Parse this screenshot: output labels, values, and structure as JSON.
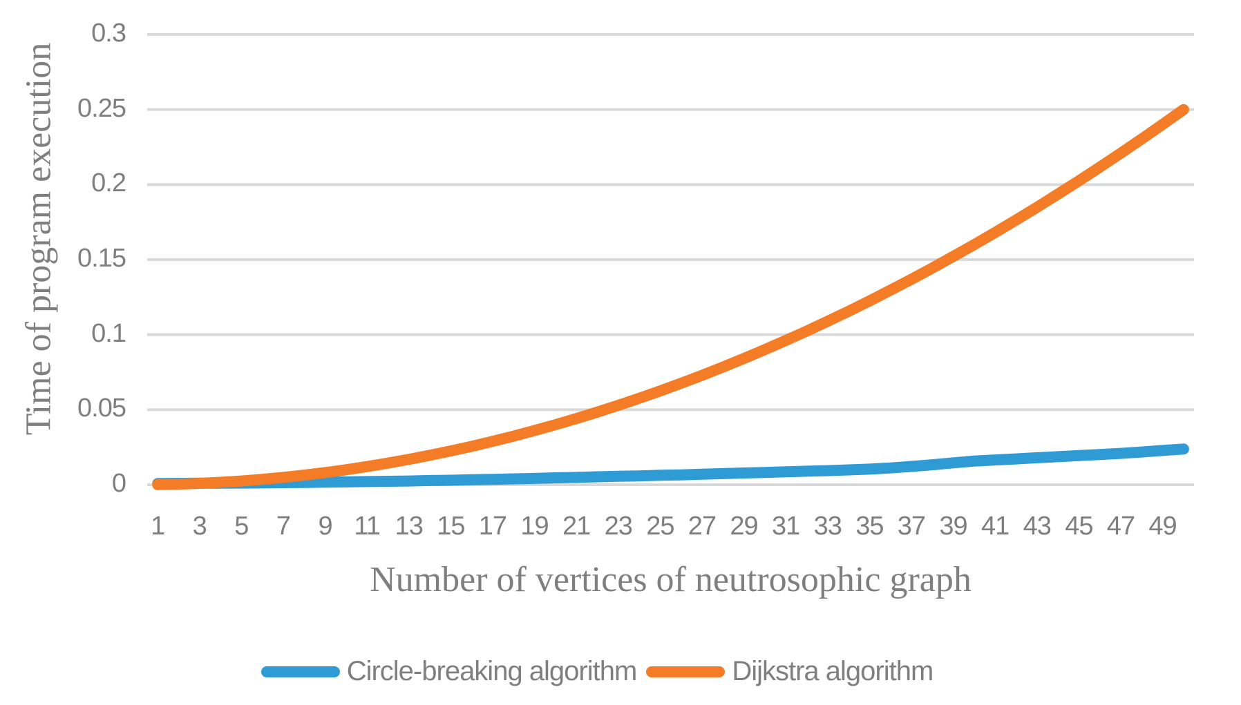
{
  "figure_title": "",
  "axes": {
    "y_title": "Time of program execution",
    "x_title": "Number of vertices of neutrosophic graph"
  },
  "legend": {
    "items": [
      {
        "label": "Circle-breaking algorithm",
        "color": "#2E9BD5"
      },
      {
        "label": "Dijkstra algorithm",
        "color": "#F57C26"
      }
    ]
  },
  "chart_data": {
    "type": "line",
    "title": "",
    "xlabel": "Number of vertices of neutrosophic graph",
    "ylabel": "Time of program execution",
    "xlim": [
      0.5,
      50.5
    ],
    "ylim": [
      0,
      0.3
    ],
    "grid": "horizontal-only",
    "legend_position": "bottom-center",
    "gridline_color": "#D9D9D9",
    "text_color": "#7f7f7f",
    "xticks": [
      1,
      3,
      5,
      7,
      9,
      11,
      13,
      15,
      17,
      19,
      21,
      23,
      25,
      27,
      29,
      31,
      33,
      35,
      37,
      39,
      41,
      43,
      45,
      47,
      49
    ],
    "yticks": [
      0,
      0.05,
      0.1,
      0.15,
      0.2,
      0.25,
      0.3
    ],
    "ytick_labels": [
      "0",
      "0.05",
      "0.1",
      "0.15",
      "0.2",
      "0.25",
      "0.3"
    ],
    "x": [
      1,
      2,
      3,
      4,
      5,
      6,
      7,
      8,
      9,
      10,
      11,
      12,
      13,
      14,
      15,
      16,
      17,
      18,
      19,
      20,
      21,
      22,
      23,
      24,
      25,
      26,
      27,
      28,
      29,
      30,
      31,
      32,
      33,
      34,
      35,
      36,
      37,
      38,
      39,
      40,
      41,
      42,
      43,
      44,
      45,
      46,
      47,
      48,
      49,
      50
    ],
    "series": [
      {
        "name": "Circle-breaking algorithm",
        "color": "#2E9BD5",
        "values": [
          0.0008,
          0.0009,
          0.001,
          0.001,
          0.0011,
          0.0012,
          0.0014,
          0.0015,
          0.0017,
          0.0019,
          0.0021,
          0.0023,
          0.0025,
          0.0028,
          0.003,
          0.0033,
          0.0036,
          0.0039,
          0.0042,
          0.0046,
          0.0049,
          0.0053,
          0.0056,
          0.0059,
          0.0063,
          0.0066,
          0.007,
          0.0074,
          0.0078,
          0.0082,
          0.0086,
          0.009,
          0.0094,
          0.0099,
          0.0104,
          0.0112,
          0.0122,
          0.0133,
          0.0146,
          0.0158,
          0.0165,
          0.0172,
          0.018,
          0.0187,
          0.0194,
          0.0201,
          0.0209,
          0.0218,
          0.0228,
          0.0238
        ]
      },
      {
        "name": "Dijkstra algorithm",
        "color": "#F57C26",
        "values": [
          0.0001,
          0.0004,
          0.0009,
          0.0016,
          0.0025,
          0.0036,
          0.0049,
          0.0064,
          0.0081,
          0.01,
          0.0121,
          0.0144,
          0.0169,
          0.0196,
          0.0225,
          0.0256,
          0.0289,
          0.0324,
          0.0361,
          0.04,
          0.0441,
          0.0484,
          0.0529,
          0.0576,
          0.0625,
          0.0676,
          0.0729,
          0.0784,
          0.0841,
          0.09,
          0.0961,
          0.1024,
          0.1089,
          0.1156,
          0.1225,
          0.1296,
          0.1369,
          0.1444,
          0.1521,
          0.16,
          0.1681,
          0.1764,
          0.1849,
          0.1936,
          0.2025,
          0.2116,
          0.2209,
          0.2304,
          0.2401,
          0.25
        ]
      }
    ]
  }
}
